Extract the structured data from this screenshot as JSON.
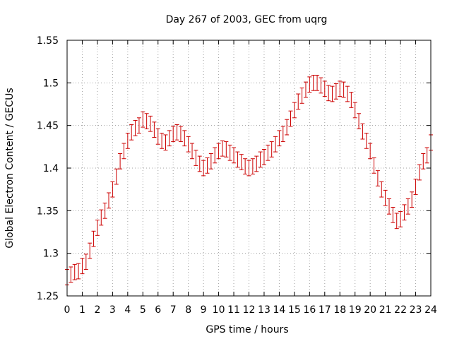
{
  "chart_data": {
    "type": "scatter",
    "title": "Day 267 of 2003, GEC from uqrg",
    "xlabel": "GPS time / hours",
    "ylabel": "Global Electron Content / GECUs",
    "xlim": [
      0,
      24
    ],
    "ylim": [
      1.25,
      1.55
    ],
    "x_ticks": [
      "0",
      "1",
      "2",
      "3",
      "4",
      "5",
      "6",
      "7",
      "8",
      "9",
      "10",
      "11",
      "12",
      "13",
      "14",
      "15",
      "16",
      "17",
      "18",
      "19",
      "20",
      "21",
      "22",
      "23",
      "24"
    ],
    "y_ticks": [
      "1.25",
      "1.3",
      "1.35",
      "1.4",
      "1.45",
      "1.5",
      "1.55"
    ],
    "grid": true,
    "error_bar_halfwidth": 0.009,
    "series": [
      {
        "name": "GEC",
        "color": "#cc0000",
        "x": [
          0,
          0.25,
          0.5,
          0.75,
          1,
          1.25,
          1.5,
          1.75,
          2,
          2.25,
          2.5,
          2.75,
          3,
          3.25,
          3.5,
          3.75,
          4,
          4.25,
          4.5,
          4.75,
          5,
          5.25,
          5.5,
          5.75,
          6,
          6.25,
          6.5,
          6.75,
          7,
          7.25,
          7.5,
          7.75,
          8,
          8.25,
          8.5,
          8.75,
          9,
          9.25,
          9.5,
          9.75,
          10,
          10.25,
          10.5,
          10.75,
          11,
          11.25,
          11.5,
          11.75,
          12,
          12.25,
          12.5,
          12.75,
          13,
          13.25,
          13.5,
          13.75,
          14,
          14.25,
          14.5,
          14.75,
          15,
          15.25,
          15.5,
          15.75,
          16,
          16.25,
          16.5,
          16.75,
          17,
          17.25,
          17.5,
          17.75,
          18,
          18.25,
          18.5,
          18.75,
          19,
          19.25,
          19.5,
          19.75,
          20,
          20.25,
          20.5,
          20.75,
          21,
          21.25,
          21.5,
          21.75,
          22,
          22.25,
          22.5,
          22.75,
          23,
          23.25,
          23.5,
          23.75,
          24
        ],
        "y": [
          1.272,
          1.275,
          1.278,
          1.279,
          1.285,
          1.29,
          1.303,
          1.317,
          1.33,
          1.342,
          1.35,
          1.362,
          1.375,
          1.39,
          1.408,
          1.42,
          1.432,
          1.442,
          1.447,
          1.45,
          1.457,
          1.455,
          1.452,
          1.445,
          1.437,
          1.432,
          1.43,
          1.435,
          1.44,
          1.442,
          1.44,
          1.435,
          1.428,
          1.42,
          1.412,
          1.405,
          1.4,
          1.403,
          1.408,
          1.415,
          1.42,
          1.423,
          1.422,
          1.418,
          1.415,
          1.41,
          1.407,
          1.402,
          1.4,
          1.402,
          1.405,
          1.41,
          1.413,
          1.418,
          1.422,
          1.428,
          1.435,
          1.44,
          1.448,
          1.458,
          1.468,
          1.478,
          1.485,
          1.492,
          1.498,
          1.5,
          1.5,
          1.497,
          1.493,
          1.488,
          1.487,
          1.49,
          1.493,
          1.492,
          1.487,
          1.48,
          1.468,
          1.455,
          1.443,
          1.432,
          1.42,
          1.403,
          1.388,
          1.375,
          1.365,
          1.355,
          1.345,
          1.338,
          1.34,
          1.348,
          1.355,
          1.363,
          1.378,
          1.395,
          1.408,
          1.415,
          1.43
        ]
      }
    ]
  }
}
